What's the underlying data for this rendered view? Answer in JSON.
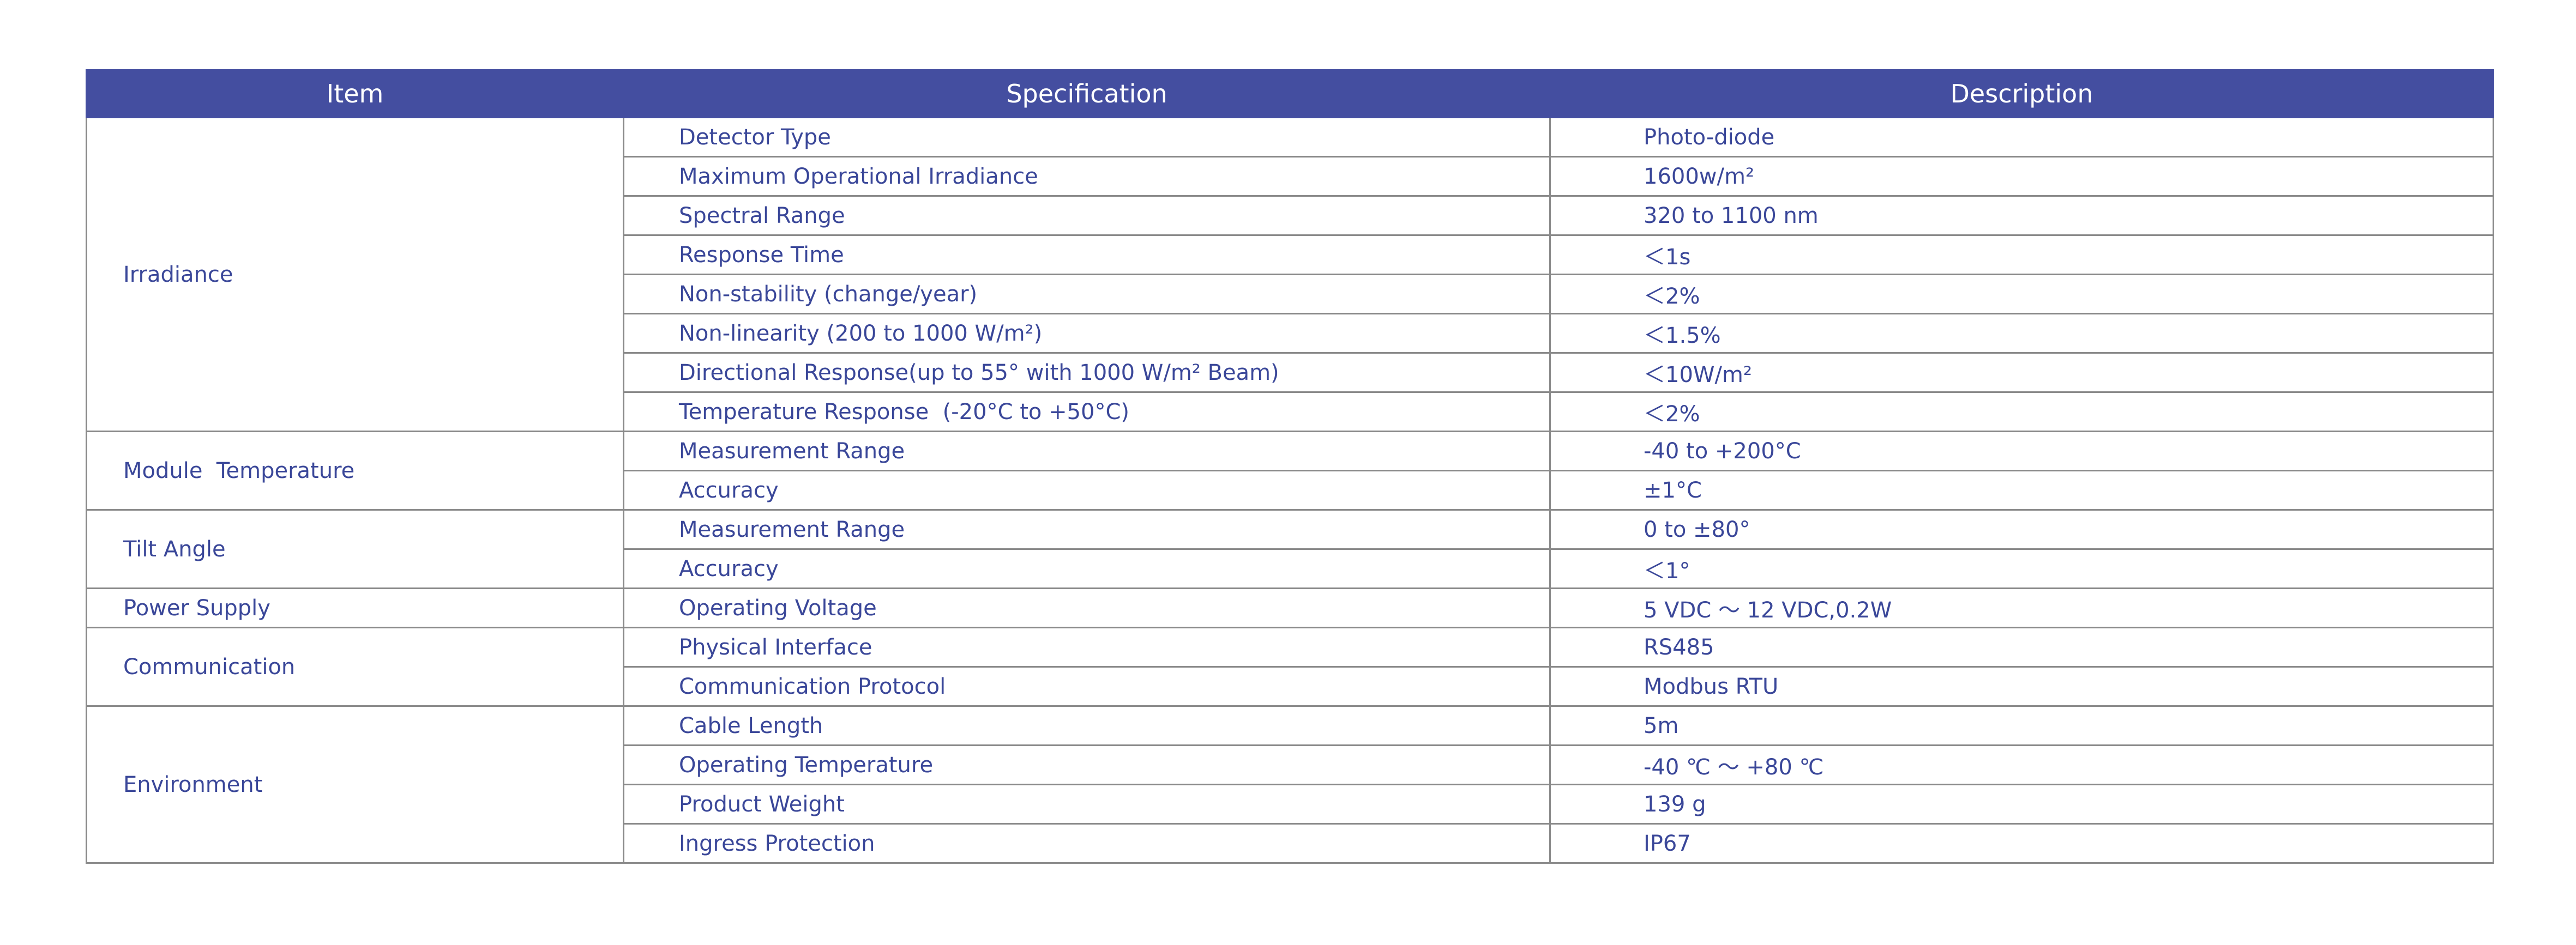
{
  "header": [
    "Item",
    "Specification",
    "Description"
  ],
  "groups": [
    {
      "item": "Irradiance",
      "rows": [
        [
          "Detector Type",
          "Photo-diode"
        ],
        [
          "Maximum Operational Irradiance",
          "1600w/m²"
        ],
        [
          "Spectral Range",
          "320 to 1100 nm"
        ],
        [
          "Response Time",
          "＜1s"
        ],
        [
          "Non-stability (change/year)",
          "＜2%"
        ],
        [
          "Non-linearity (200 to 1000 W/m²)",
          "＜1.5%"
        ],
        [
          "Directional Response(up to 55° with 1000 W/m² Beam)",
          "＜10W/m²"
        ],
        [
          "Temperature Response  (-20°C to +50°C)",
          "＜2%"
        ]
      ]
    },
    {
      "item": "Module  Temperature",
      "rows": [
        [
          "Measurement Range",
          "-40 to +200°C"
        ],
        [
          "Accuracy",
          "±1°C"
        ]
      ]
    },
    {
      "item": "Tilt Angle",
      "rows": [
        [
          "Measurement Range",
          "0 to ±80°"
        ],
        [
          "Accuracy",
          "＜1°"
        ]
      ]
    },
    {
      "item": "Power Supply",
      "rows": [
        [
          "Operating Voltage",
          "5 VDC ～ 12 VDC,0.2W"
        ]
      ]
    },
    {
      "item": "Communication",
      "rows": [
        [
          "Physical Interface",
          "RS485"
        ],
        [
          "Communication Protocol",
          "Modbus RTU"
        ]
      ]
    },
    {
      "item": "Environment",
      "rows": [
        [
          "Cable Length",
          "5m"
        ],
        [
          "Operating Temperature",
          "-40 ℃ ～ +80 ℃"
        ],
        [
          "Product Weight",
          "139 g"
        ],
        [
          "Ingress Protection",
          "IP67"
        ]
      ]
    }
  ]
}
